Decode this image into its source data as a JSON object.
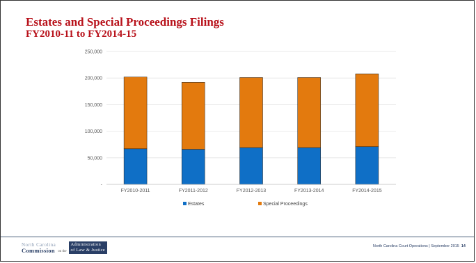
{
  "slide": {
    "title": "Estates and Special Proceedings Filings",
    "subtitle": "FY2010-11  to FY2014-15"
  },
  "chart_data": {
    "type": "bar",
    "stacked": true,
    "categories": [
      "FY2010-2011",
      "FY2011-2012",
      "FY2012-2013",
      "FY2013-2014",
      "FY2014-2015"
    ],
    "series": [
      {
        "name": "Estates",
        "color": "#0f6fc6",
        "values": [
          67000,
          66000,
          69000,
          69000,
          71000
        ]
      },
      {
        "name": "Special Proceedings",
        "color": "#e37a0e",
        "values": [
          135000,
          126000,
          132000,
          132000,
          137000
        ]
      }
    ],
    "ylim": [
      0,
      250000
    ],
    "yticks": [
      {
        "value": 0,
        "label": "-"
      },
      {
        "value": 50000,
        "label": "50,000"
      },
      {
        "value": 100000,
        "label": "100,000"
      },
      {
        "value": 150000,
        "label": "150,000"
      },
      {
        "value": 200000,
        "label": "200,000"
      },
      {
        "value": 250000,
        "label": "250,000"
      }
    ],
    "grid": true,
    "legend": "bottom"
  },
  "footer": {
    "logo_line1": "North Carolina",
    "logo_line2": "Commission",
    "logo_on": "on the",
    "logo_right1": "Administration",
    "logo_right2": "of Law & Justice",
    "source": "North Carolina Court Operations   |  September 2015",
    "page": "14"
  }
}
